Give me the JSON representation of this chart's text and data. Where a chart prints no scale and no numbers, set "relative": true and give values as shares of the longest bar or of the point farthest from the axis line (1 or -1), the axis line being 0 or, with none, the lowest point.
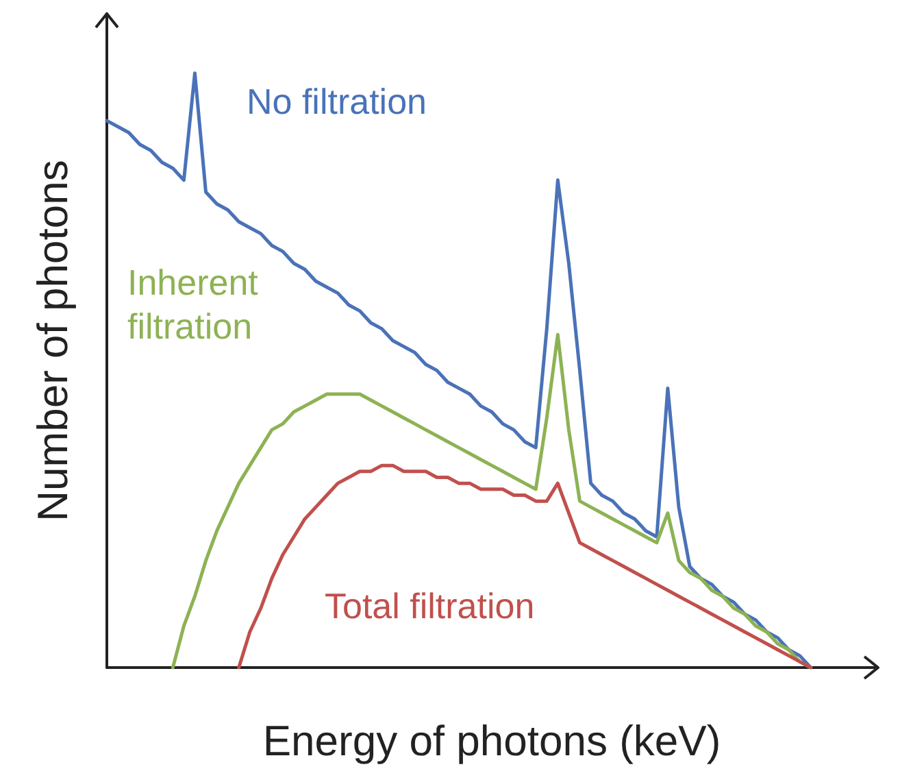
{
  "chart_data": {
    "type": "line",
    "relative": true,
    "xlabel": "Energy of photons (keV)",
    "ylabel": "Number of photons",
    "categories": [
      null,
      null,
      null,
      null,
      null,
      null,
      null,
      null,
      null,
      null,
      null,
      null,
      null,
      null,
      null,
      null,
      null,
      null,
      null,
      null,
      null,
      null,
      null,
      null,
      null,
      null,
      null,
      null,
      null,
      null,
      null,
      null,
      null,
      null,
      null,
      null,
      null,
      null,
      null,
      null,
      null,
      null,
      null,
      null,
      null,
      null,
      null,
      null,
      null,
      null,
      null,
      null,
      null,
      null,
      null,
      null,
      null,
      null,
      null,
      null,
      null,
      null,
      null,
      null,
      null,
      null,
      null,
      null,
      null,
      null,
      null
    ],
    "series": [
      {
        "name": "No filtration",
        "color": "#4a72b8",
        "values": [
          0.92,
          0.91,
          0.9,
          0.88,
          0.87,
          0.85,
          0.84,
          0.82,
          1,
          0.8,
          0.78,
          0.77,
          0.75,
          0.74,
          0.73,
          0.71,
          0.7,
          0.68,
          0.67,
          0.65,
          0.64,
          0.63,
          0.61,
          0.6,
          0.58,
          0.57,
          0.55,
          0.54,
          0.53,
          0.51,
          0.5,
          0.48,
          0.47,
          0.46,
          0.44,
          0.43,
          0.41,
          0.4,
          0.38,
          0.37,
          0.57,
          0.82,
          0.68,
          0.5,
          0.31,
          0.29,
          0.28,
          0.26,
          0.25,
          0.23,
          0.22,
          0.47,
          0.27,
          0.17,
          0.15,
          0.14,
          0.12,
          0.11,
          0.09,
          0.08,
          0.06,
          0.05,
          0.03,
          0.02,
          0,
          null,
          null,
          null,
          null,
          null,
          null
        ]
      },
      {
        "name": "Inherent filtration",
        "color": "#8db254",
        "values": [
          null,
          null,
          null,
          null,
          null,
          null,
          0,
          0.07,
          0.12,
          0.18,
          0.23,
          0.27,
          0.31,
          0.34,
          0.37,
          0.4,
          0.41,
          0.43,
          0.44,
          0.45,
          0.46,
          0.46,
          0.46,
          0.46,
          0.45,
          0.44,
          0.43,
          0.42,
          0.41,
          0.4,
          0.39,
          0.38,
          0.37,
          0.36,
          0.35,
          0.34,
          0.33,
          0.32,
          0.31,
          0.3,
          0.42,
          0.56,
          0.4,
          0.28,
          0.27,
          0.26,
          0.25,
          0.24,
          0.23,
          0.22,
          0.21,
          0.26,
          0.18,
          0.16,
          0.15,
          0.13,
          0.12,
          0.1,
          0.09,
          0.07,
          0.06,
          0.04,
          0.03,
          0.01,
          0,
          null,
          null,
          null,
          null,
          null,
          null
        ]
      },
      {
        "name": "Total filtration",
        "color": "#c0504d",
        "values": [
          null,
          null,
          null,
          null,
          null,
          null,
          null,
          null,
          null,
          null,
          null,
          null,
          0,
          0.06,
          0.1,
          0.15,
          0.19,
          0.22,
          0.25,
          0.27,
          0.29,
          0.31,
          0.32,
          0.33,
          0.33,
          0.34,
          0.34,
          0.33,
          0.33,
          0.33,
          0.32,
          0.32,
          0.31,
          0.31,
          0.3,
          0.3,
          0.3,
          0.29,
          0.29,
          0.28,
          0.28,
          0.31,
          0.26,
          0.21,
          0.2,
          0.19,
          0.18,
          0.17,
          0.16,
          0.15,
          0.14,
          0.13,
          0.12,
          0.11,
          0.1,
          0.09,
          0.08,
          0.07,
          0.06,
          0.05,
          0.04,
          0.03,
          0.02,
          0.01,
          0,
          null,
          null,
          null,
          null,
          null,
          null
        ]
      }
    ]
  }
}
